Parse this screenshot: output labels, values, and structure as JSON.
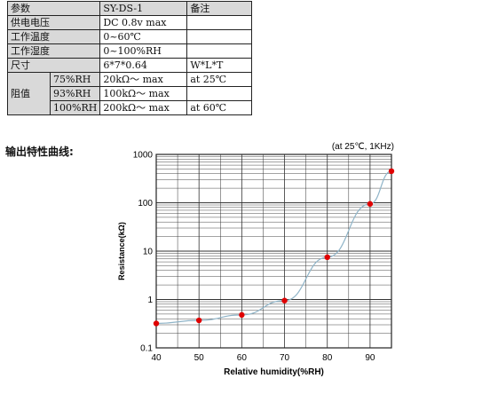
{
  "spec_table": {
    "header": [
      "参数",
      "SY-DS-1",
      "备注"
    ],
    "rows": [
      [
        "供电电压",
        "DC 0.8v max",
        ""
      ],
      [
        "工作温度",
        "0~60℃",
        ""
      ],
      [
        "工作湿度",
        "0~100%RH",
        ""
      ],
      [
        "尺寸",
        "6*7*0.64",
        "W*L*T"
      ]
    ],
    "impedance": {
      "label": "阻值",
      "rows": [
        [
          "75%RH",
          "20kΩ～ max",
          "at 25℃"
        ],
        [
          "93%RH",
          "100kΩ～ max",
          ""
        ],
        [
          "100%RH",
          "200kΩ～ max",
          "at 60℃"
        ]
      ]
    }
  },
  "section_title": "输出特性曲线:",
  "chart_data": {
    "type": "line",
    "annotation": "(at 25℃, 1KHz)",
    "xlabel": "Relative humidity(%RH)",
    "ylabel": "Resistance(kΩ)",
    "xlim": [
      40,
      95
    ],
    "ylim": [
      0.1,
      1000
    ],
    "yscale": "log",
    "x_ticks": [
      40,
      50,
      60,
      70,
      80,
      90
    ],
    "y_ticks": [
      0.1,
      1,
      10,
      100,
      1000
    ],
    "y_tick_labels": [
      "0.1",
      "1",
      "10",
      "100",
      "1000"
    ],
    "grid": true,
    "series": [
      {
        "x": [
          40,
          50,
          60,
          70,
          80,
          90,
          95
        ],
        "y": [
          0.32,
          0.37,
          0.48,
          0.95,
          7.5,
          95,
          450
        ],
        "marker_color": "#e00000",
        "line_color": "#8fb4c8"
      }
    ]
  }
}
